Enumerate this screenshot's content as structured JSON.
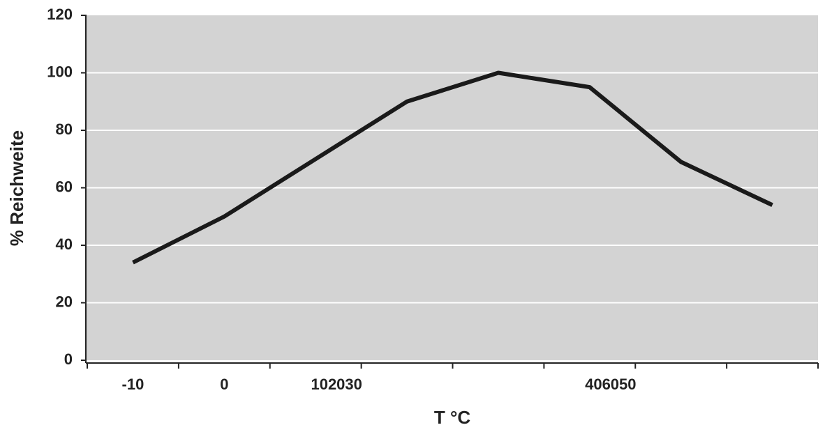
{
  "chart_data": {
    "type": "line",
    "xlabel": "T °C",
    "ylabel": "% Reichweite",
    "categories": [
      "-10",
      "0",
      "102030",
      null,
      null,
      "406050",
      null,
      null
    ],
    "series": [
      {
        "color": "#1a1a1a",
        "values": [
          34,
          50,
          70,
          90,
          100,
          95,
          69,
          54
        ]
      }
    ],
    "ylim": [
      0,
      120
    ],
    "yticks": [
      0,
      20,
      40,
      60,
      80,
      100,
      120
    ],
    "grid": true
  }
}
